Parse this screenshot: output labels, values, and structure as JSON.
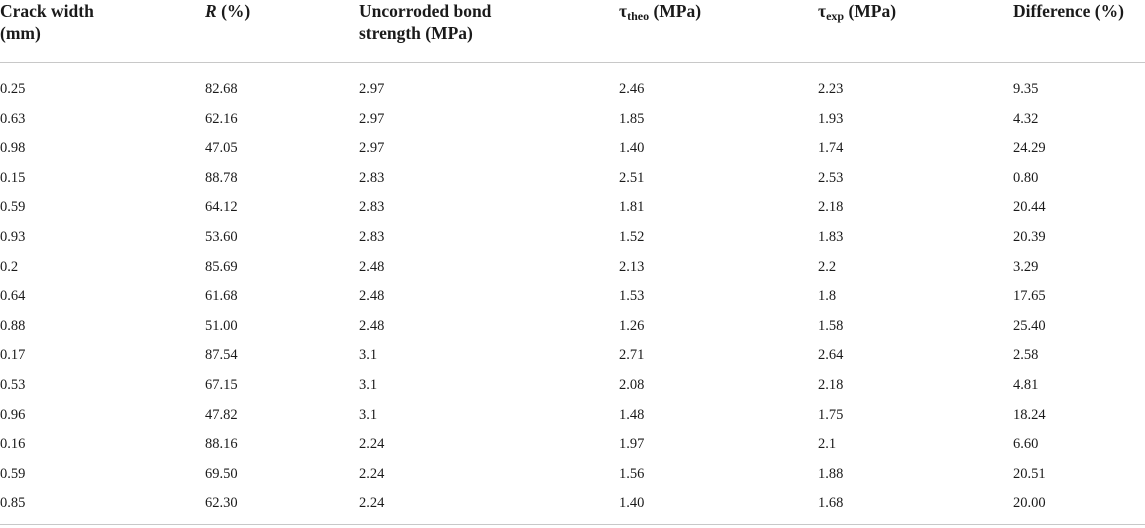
{
  "headers": {
    "crack_width_line1": "Crack width",
    "crack_width_line2": "(mm)",
    "r_symbol": "R",
    "r_unit": " (%)",
    "uncorroded_line1": "Uncorroded bond",
    "uncorroded_line2": "strength (MPa)",
    "tau": "τ",
    "tau_theo_sub": "theo",
    "tau_theo_unit": " (MPa)",
    "tau_exp_sub": "exp",
    "tau_exp_unit": " (MPa)",
    "difference": "Difference (%)"
  },
  "rows": [
    [
      "0.25",
      "82.68",
      "2.97",
      "2.46",
      "2.23",
      "9.35"
    ],
    [
      "0.63",
      "62.16",
      "2.97",
      "1.85",
      "1.93",
      "4.32"
    ],
    [
      "0.98",
      "47.05",
      "2.97",
      "1.40",
      "1.74",
      "24.29"
    ],
    [
      "0.15",
      "88.78",
      "2.83",
      "2.51",
      "2.53",
      "0.80"
    ],
    [
      "0.59",
      "64.12",
      "2.83",
      "1.81",
      "2.18",
      "20.44"
    ],
    [
      "0.93",
      "53.60",
      "2.83",
      "1.52",
      "1.83",
      "20.39"
    ],
    [
      "0.2",
      "85.69",
      "2.48",
      "2.13",
      "2.2",
      "3.29"
    ],
    [
      "0.64",
      "61.68",
      "2.48",
      "1.53",
      "1.8",
      "17.65"
    ],
    [
      "0.88",
      "51.00",
      "2.48",
      "1.26",
      "1.58",
      "25.40"
    ],
    [
      "0.17",
      "87.54",
      "3.1",
      "2.71",
      "2.64",
      "2.58"
    ],
    [
      "0.53",
      "67.15",
      "3.1",
      "2.08",
      "2.18",
      "4.81"
    ],
    [
      "0.96",
      "47.82",
      "3.1",
      "1.48",
      "1.75",
      "18.24"
    ],
    [
      "0.16",
      "88.16",
      "2.24",
      "1.97",
      "2.1",
      "6.60"
    ],
    [
      "0.59",
      "69.50",
      "2.24",
      "1.56",
      "1.88",
      "20.51"
    ],
    [
      "0.85",
      "62.30",
      "2.24",
      "1.40",
      "1.68",
      "20.00"
    ]
  ]
}
